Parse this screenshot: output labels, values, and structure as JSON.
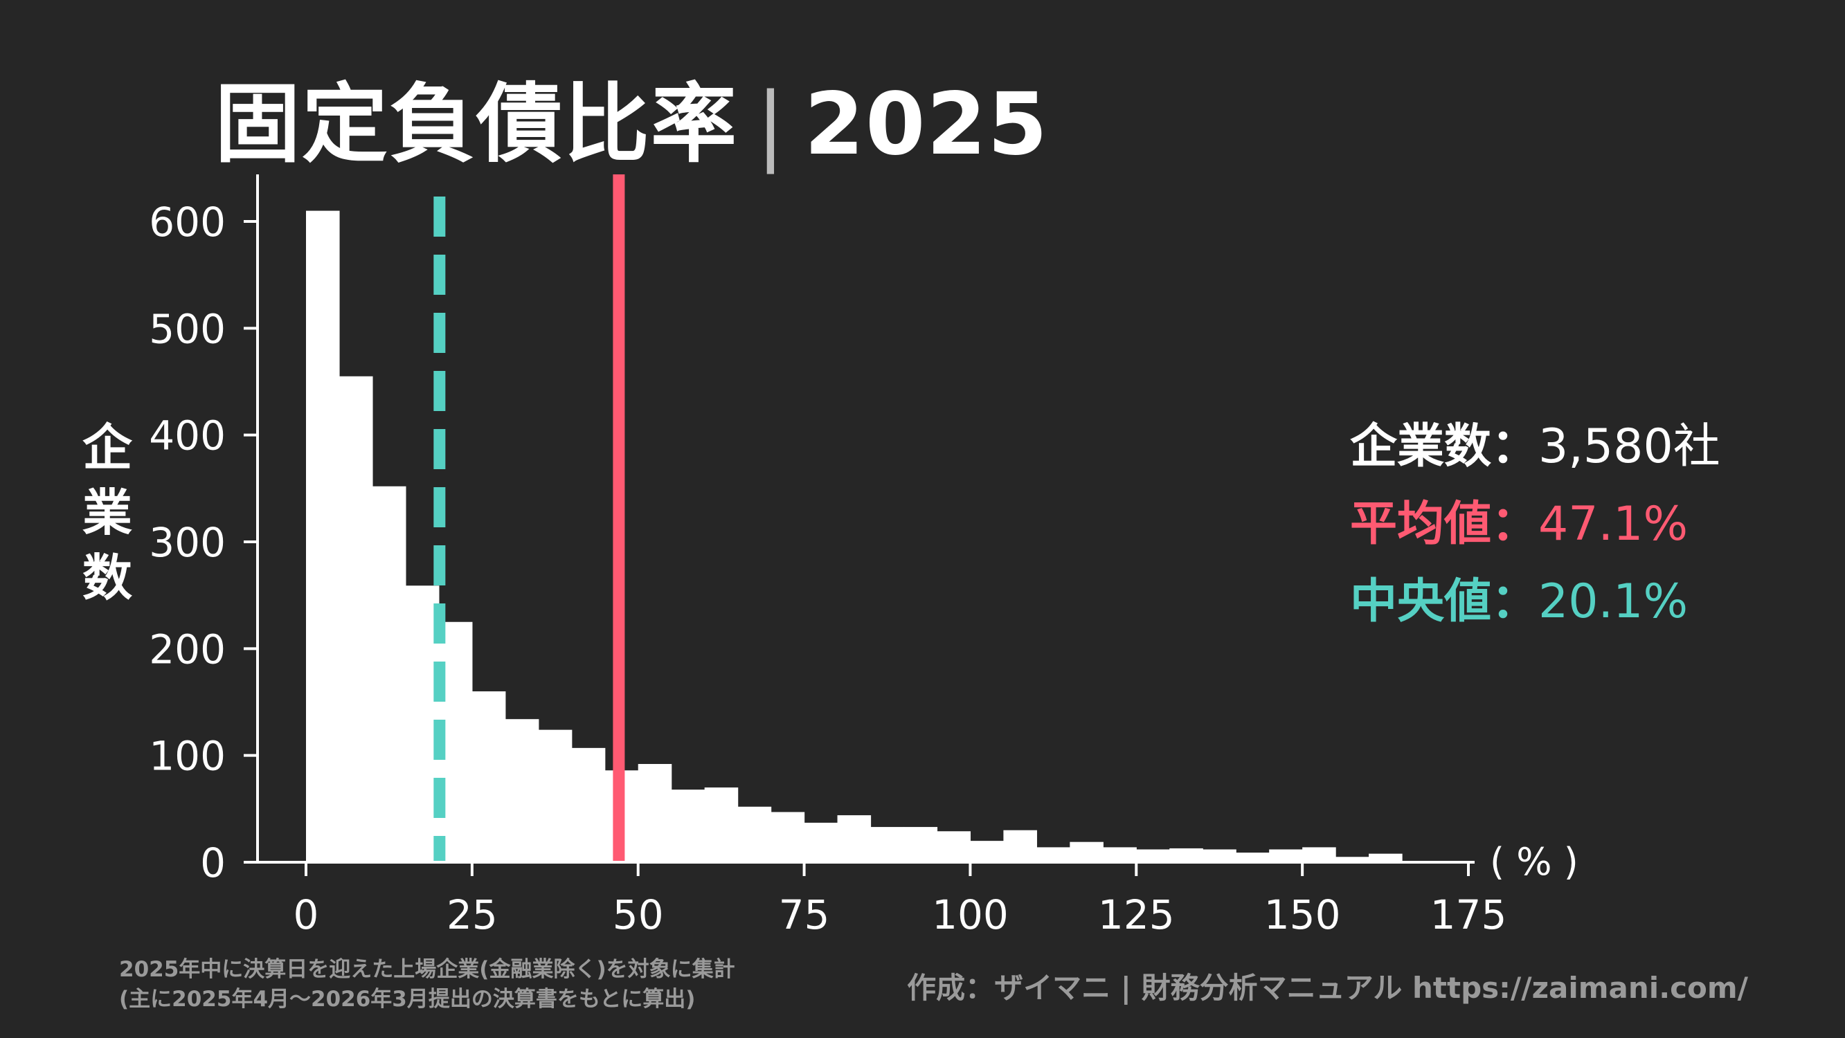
{
  "title": {
    "main": "固定負債比率",
    "separator": "|",
    "year": "2025"
  },
  "stats": {
    "count_label": "企業数",
    "count_value": "3,580社",
    "mean_label": "平均値",
    "mean_value": "47.1%",
    "median_label": "中央値",
    "median_value": "20.1%",
    "colon": "："
  },
  "footnote": {
    "line1": "2025年中に決算日を迎えた上場企業(金融業除く)を対象に集計",
    "line2": "(主に2025年4月～2026年3月提出の決算書をもとに算出)"
  },
  "credit": "作成：ザイマニ | 財務分析マニュアル https://zaimani.com/",
  "colors": {
    "background": "#262626",
    "bars": "#ffffff",
    "mean": "#ff5a72",
    "median": "#55d0c3",
    "muted": "#9a9a9a"
  },
  "chart_data": {
    "type": "bar",
    "subtype": "histogram",
    "ylabel": "企業数",
    "xunit": "( % )",
    "xlim": [
      -7.5,
      175
    ],
    "ylim": [
      0,
      640
    ],
    "xticks": [
      0,
      25,
      50,
      75,
      100,
      125,
      150,
      175
    ],
    "xtick_labels": [
      "0",
      "25",
      "50",
      "75",
      "100",
      "125",
      "150",
      "175"
    ],
    "yticks": [
      0,
      100,
      200,
      300,
      400,
      500,
      600
    ],
    "ytick_labels": [
      "0",
      "100",
      "200",
      "300",
      "400",
      "500",
      "600"
    ],
    "bin_width": 5,
    "bin_starts": [
      0,
      5,
      10,
      15,
      20,
      25,
      30,
      35,
      40,
      45,
      50,
      55,
      60,
      65,
      70,
      75,
      80,
      85,
      90,
      95,
      100,
      105,
      110,
      115,
      120,
      125,
      130,
      135,
      140,
      145,
      150,
      155,
      160,
      165
    ],
    "values": [
      610,
      455,
      352,
      259,
      225,
      160,
      134,
      124,
      107,
      86,
      92,
      68,
      70,
      52,
      47,
      37,
      44,
      33,
      33,
      29,
      20,
      30,
      14,
      19,
      14,
      12,
      13,
      12,
      9,
      12,
      14,
      5,
      8,
      0
    ],
    "grid": false,
    "legend": "none",
    "mean_line": 47.1,
    "median_line": 20.1
  }
}
